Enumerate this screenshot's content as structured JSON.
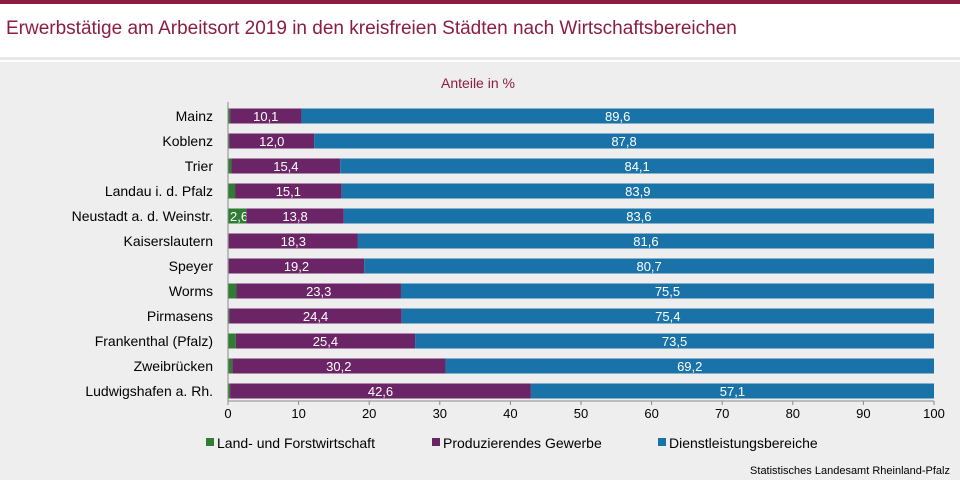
{
  "header": {
    "title": "Erwerbstätige am Arbeitsort 2019 in den kreisfreien Städten nach Wirtschaftsbereichen"
  },
  "footer": {
    "source": "Statistisches Landesamt Rheinland-Pfalz"
  },
  "chart_data": {
    "type": "bar",
    "orientation": "horizontal",
    "stacked": true,
    "title": "Erwerbstätige am Arbeitsort 2019 in den kreisfreien Städten nach Wirtschaftsbereichen",
    "subtitle": "Anteile in %",
    "xlim": [
      0,
      100
    ],
    "xticks": [
      0,
      10,
      20,
      30,
      40,
      50,
      60,
      70,
      80,
      90,
      100
    ],
    "categories": [
      "Mainz",
      "Koblenz",
      "Trier",
      "Landau i. d. Pfalz",
      "Neustadt a. d. Weinstr.",
      "Kaiserslautern",
      "Speyer",
      "Worms",
      "Pirmasens",
      "Frankenthal (Pfalz)",
      "Zweibrücken",
      "Ludwigshafen a. Rh."
    ],
    "series": [
      {
        "name": "Land- und Forstwirtschaft",
        "color": "#2e7d32",
        "values": [
          0.3,
          0.2,
          0.5,
          1.0,
          2.6,
          0.1,
          0.1,
          1.2,
          0.2,
          1.1,
          0.6,
          0.3
        ],
        "labels": [
          "",
          "",
          "",
          "",
          "2,6",
          "",
          "",
          "",
          "",
          "",
          "",
          ""
        ]
      },
      {
        "name": "Produzierendes Gewerbe",
        "color": "#6b2466",
        "values": [
          10.1,
          12.0,
          15.4,
          15.1,
          13.8,
          18.3,
          19.2,
          23.3,
          24.4,
          25.4,
          30.2,
          42.6
        ],
        "labels": [
          "10,1",
          "12,0",
          "15,4",
          "15,1",
          "13,8",
          "18,3",
          "19,2",
          "23,3",
          "24,4",
          "25,4",
          "30,2",
          "42,6"
        ]
      },
      {
        "name": "Dienstleistungsbereiche",
        "color": "#1a73a8",
        "values": [
          89.6,
          87.8,
          84.1,
          83.9,
          83.6,
          81.6,
          80.7,
          75.5,
          75.4,
          73.5,
          69.2,
          57.1
        ],
        "labels": [
          "89,6",
          "87,8",
          "84,1",
          "83,9",
          "83,6",
          "81,6",
          "80,7",
          "75,5",
          "75,4",
          "73,5",
          "69,2",
          "57,1"
        ]
      }
    ],
    "legend_position": "bottom"
  }
}
